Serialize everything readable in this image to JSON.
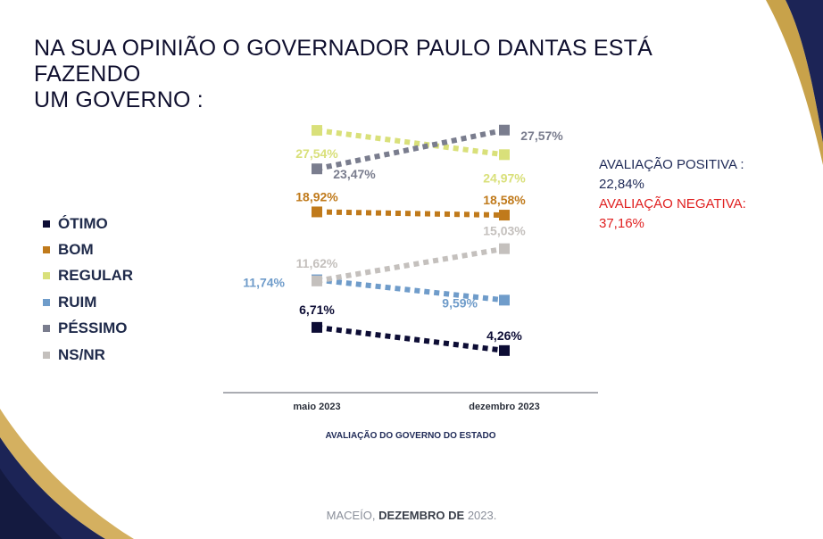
{
  "title": {
    "line1": "NA SUA OPINIÃO  O GOVERNADOR PAULO DANTAS ESTÁ FAZENDO",
    "line2": "UM GOVERNO :"
  },
  "legend": [
    {
      "label": "ÓTIMO",
      "color": "#0d0d35"
    },
    {
      "label": "BOM",
      "color": "#c07a1b"
    },
    {
      "label": "REGULAR",
      "color": "#d9e07a"
    },
    {
      "label": "RUIM",
      "color": "#6f9cca"
    },
    {
      "label": "PÉSSIMO",
      "color": "#7a7d8e"
    },
    {
      "label": "NS/NR",
      "color": "#c4c0bd"
    }
  ],
  "summary": {
    "positive_label": "AVALIAÇÃO POSITIVA :",
    "positive_value": "22,84%",
    "negative_label": "AVALIAÇÃO NEGATIVA:",
    "negative_value": "37,16%"
  },
  "chart_data": {
    "type": "line",
    "xlabel": "AVALIAÇÃO DO GOVERNO DO ESTADO",
    "categories": [
      "maio 2023",
      "dezembro 2023"
    ],
    "series": [
      {
        "name": "ÓTIMO",
        "values": [
          6.71,
          4.26
        ],
        "labels": [
          "6,71%",
          "4,26%"
        ],
        "color": "#0d0d35"
      },
      {
        "name": "BOM",
        "values": [
          18.92,
          18.58
        ],
        "labels": [
          "18,92%",
          "18,58%"
        ],
        "color": "#c07a1b"
      },
      {
        "name": "REGULAR",
        "values": [
          27.54,
          24.97
        ],
        "labels": [
          "27,54%",
          "24,97%"
        ],
        "color": "#d9e07a"
      },
      {
        "name": "RUIM",
        "values": [
          11.74,
          9.59
        ],
        "labels": [
          "11,74%",
          "9,59%"
        ],
        "color": "#6f9cca"
      },
      {
        "name": "PÉSSIMO",
        "values": [
          23.47,
          27.57
        ],
        "labels": [
          "23,47%",
          "27,57%"
        ],
        "color": "#7a7d8e"
      },
      {
        "name": "NS/NR",
        "values": [
          11.62,
          15.03
        ],
        "labels": [
          "11,62%",
          "15,03%"
        ],
        "color": "#c4c0bd"
      }
    ],
    "legend_position": "left"
  },
  "footer": {
    "city": "MACEÍO, ",
    "date": "DEZEMBRO DE",
    "year": " 2023."
  }
}
